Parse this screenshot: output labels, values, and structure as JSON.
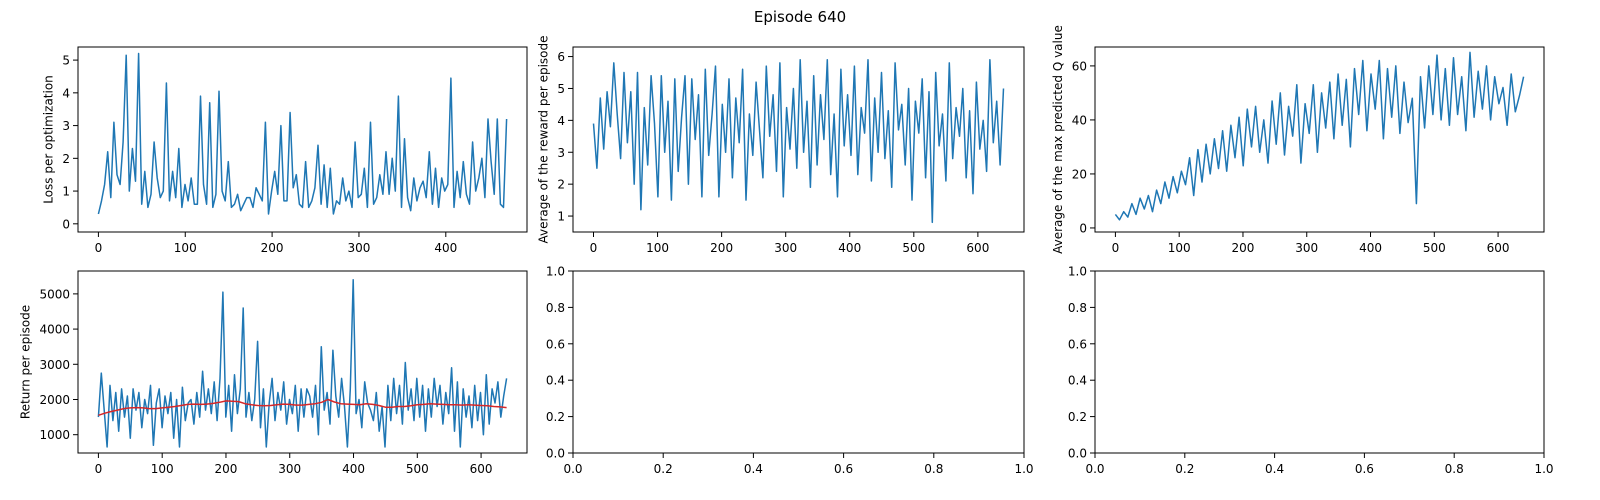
{
  "figure": {
    "title": "Episode 640"
  },
  "colors": {
    "series": "#1f77b4",
    "average": "#d62728",
    "axis": "#000000",
    "background": "#ffffff"
  },
  "chart_data": [
    {
      "id": "loss",
      "type": "line",
      "ylabel": "Loss per optimization",
      "xlim": [
        -23.5,
        493.5
      ],
      "ylim": [
        -0.25,
        5.4
      ],
      "xticks": [
        0,
        100,
        200,
        300,
        400
      ],
      "yticks": [
        0,
        1,
        2,
        3,
        4,
        5
      ],
      "xtick_labels": [
        "0",
        "100",
        "200",
        "300",
        "400"
      ],
      "ytick_labels": [
        "0",
        "1",
        "2",
        "3",
        "4",
        "5"
      ],
      "series": [
        {
          "x_start": 0,
          "x_end": 470,
          "values": [
            0.3,
            0.7,
            1.2,
            2.2,
            0.8,
            3.1,
            1.5,
            1.2,
            2.5,
            5.15,
            1.0,
            2.3,
            1.3,
            5.2,
            0.6,
            1.6,
            0.5,
            0.9,
            2.5,
            1.4,
            0.8,
            1.0,
            4.3,
            0.7,
            1.6,
            0.8,
            2.3,
            0.5,
            1.2,
            0.7,
            1.4,
            0.6,
            0.6,
            3.9,
            1.2,
            0.6,
            3.7,
            0.5,
            0.9,
            4.05,
            1.0,
            0.7,
            1.9,
            0.5,
            0.6,
            0.9,
            0.4,
            0.6,
            0.8,
            0.8,
            0.5,
            1.1,
            0.9,
            0.7,
            3.1,
            0.3,
            1.0,
            1.6,
            0.9,
            3.0,
            0.7,
            0.7,
            3.4,
            1.1,
            1.5,
            0.6,
            0.5,
            1.9,
            0.5,
            0.7,
            1.1,
            2.4,
            0.6,
            1.8,
            0.5,
            1.7,
            0.3,
            0.7,
            0.6,
            1.4,
            0.7,
            1.0,
            0.5,
            2.5,
            0.8,
            0.9,
            1.7,
            0.5,
            3.1,
            0.6,
            0.8,
            1.5,
            0.9,
            2.2,
            0.9,
            2.0,
            1.0,
            3.9,
            0.5,
            2.6,
            0.8,
            0.4,
            1.4,
            0.7,
            1.1,
            1.3,
            0.8,
            2.2,
            0.6,
            1.7,
            0.5,
            1.4,
            1.0,
            1.2,
            4.45,
            0.5,
            1.6,
            0.8,
            1.9,
            0.9,
            0.6,
            2.5,
            1.0,
            1.4,
            2.0,
            0.8,
            3.2,
            1.9,
            0.9,
            3.2,
            0.6,
            0.5,
            3.2
          ]
        }
      ]
    },
    {
      "id": "avg-reward",
      "type": "line",
      "ylabel": "Average of the reward per episode",
      "xlim": [
        -32,
        672
      ],
      "ylim": [
        0.5,
        6.3
      ],
      "xticks": [
        0,
        100,
        200,
        300,
        400,
        500,
        600
      ],
      "yticks": [
        1,
        2,
        3,
        4,
        5,
        6
      ],
      "xtick_labels": [
        "0",
        "100",
        "200",
        "300",
        "400",
        "500",
        "600"
      ],
      "ytick_labels": [
        "1",
        "2",
        "3",
        "4",
        "5",
        "6"
      ],
      "series": [
        {
          "x_start": 0,
          "x_end": 640,
          "values": [
            3.9,
            2.5,
            4.7,
            3.1,
            4.9,
            3.8,
            5.8,
            4.2,
            2.8,
            5.5,
            3.3,
            4.9,
            2.0,
            5.5,
            1.2,
            4.4,
            2.6,
            5.4,
            3.9,
            1.6,
            5.4,
            3.0,
            4.6,
            1.5,
            5.3,
            2.4,
            4.1,
            5.4,
            2.0,
            5.3,
            3.4,
            4.8,
            1.6,
            5.6,
            2.9,
            4.2,
            5.7,
            1.6,
            4.5,
            3.0,
            5.3,
            2.2,
            4.7,
            3.3,
            5.6,
            1.5,
            4.2,
            2.9,
            5.2,
            3.7,
            2.2,
            5.7,
            3.5,
            4.8,
            2.4,
            5.8,
            1.6,
            4.4,
            3.1,
            5.0,
            2.5,
            5.9,
            3.0,
            4.6,
            1.9,
            5.4,
            2.6,
            4.8,
            3.4,
            5.9,
            2.3,
            4.2,
            1.6,
            5.6,
            3.2,
            4.8,
            2.9,
            5.7,
            2.3,
            4.4,
            3.6,
            5.9,
            2.1,
            4.7,
            3.0,
            5.5,
            2.8,
            4.3,
            1.9,
            5.8,
            3.7,
            4.5,
            2.6,
            5.0,
            1.5,
            4.6,
            3.6,
            5.3,
            2.2,
            4.9,
            0.8,
            5.5,
            3.2,
            4.2,
            2.1,
            5.8,
            2.8,
            4.4,
            3.5,
            5.0,
            2.2,
            4.3,
            1.7,
            5.2,
            3.1,
            4.0,
            2.4,
            5.9,
            3.3,
            4.6,
            2.6,
            5.0
          ]
        }
      ]
    },
    {
      "id": "max-q",
      "type": "line",
      "ylabel": "Average of the max predicted Q value",
      "xlim": [
        -32,
        672
      ],
      "ylim": [
        -1.5,
        67
      ],
      "xticks": [
        0,
        100,
        200,
        300,
        400,
        500,
        600
      ],
      "yticks": [
        0,
        20,
        40,
        60
      ],
      "xtick_labels": [
        "0",
        "100",
        "200",
        "300",
        "400",
        "500",
        "600"
      ],
      "ytick_labels": [
        "0",
        "20",
        "40",
        "60"
      ],
      "series": [
        {
          "x_start": 0,
          "x_end": 640,
          "values": [
            5,
            3,
            6,
            4,
            9,
            5,
            11,
            7,
            12,
            6,
            14,
            9,
            17,
            11,
            19,
            13,
            21,
            16,
            26,
            12,
            29,
            17,
            31,
            20,
            33,
            22,
            36,
            21,
            38,
            26,
            41,
            23,
            44,
            30,
            45,
            28,
            40,
            24,
            47,
            31,
            50,
            27,
            45,
            34,
            53,
            24,
            46,
            35,
            53,
            28,
            50,
            37,
            54,
            33,
            57,
            38,
            55,
            30,
            59,
            42,
            62,
            36,
            57,
            44,
            62,
            33,
            59,
            41,
            60,
            35,
            54,
            39,
            48,
            9,
            56,
            37,
            60,
            42,
            64,
            40,
            59,
            38,
            63,
            42,
            56,
            36,
            65,
            41,
            58,
            44,
            60,
            40,
            56,
            46,
            52,
            38,
            57,
            43,
            49,
            56
          ]
        }
      ]
    },
    {
      "id": "return",
      "type": "line",
      "ylabel": "Return per episode",
      "xlim": [
        -32,
        672
      ],
      "ylim": [
        480,
        5650
      ],
      "xticks": [
        0,
        100,
        200,
        300,
        400,
        500,
        600
      ],
      "yticks": [
        1000,
        2000,
        3000,
        4000,
        5000
      ],
      "xtick_labels": [
        "0",
        "100",
        "200",
        "300",
        "400",
        "500",
        "600"
      ],
      "ytick_labels": [
        "1000",
        "2000",
        "3000",
        "4000",
        "5000"
      ],
      "series": [
        {
          "x_start": 0,
          "x_end": 640,
          "values": [
            1500,
            2750,
            1700,
            650,
            2400,
            1400,
            2200,
            1100,
            2300,
            1500,
            2100,
            900,
            2300,
            1700,
            2200,
            1200,
            2000,
            1600,
            2400,
            700,
            1900,
            2300,
            1200,
            2100,
            1600,
            2200,
            900,
            2000,
            650,
            2350,
            1400,
            1900,
            2000,
            1300,
            2200,
            1500,
            2800,
            1700,
            2300,
            1600,
            2500,
            1400,
            2600,
            5050,
            1500,
            2400,
            1100,
            2700,
            1600,
            2300,
            4600,
            1500,
            2200,
            1400,
            2000,
            3650,
            1200,
            2300,
            650,
            1900,
            2600,
            1400,
            2200,
            1700,
            2500,
            1300,
            2000,
            1600,
            2400,
            1100,
            2300,
            1500,
            2300,
            2100,
            1500,
            2400,
            1000,
            3500,
            1700,
            2200,
            1300,
            3400,
            2100,
            1500,
            2600,
            1800,
            650,
            2300,
            5400,
            1600,
            2000,
            1200,
            2500,
            1900,
            1700,
            1400,
            2200,
            1100,
            1800,
            650,
            2400,
            1400,
            2600,
            1600,
            2400,
            1300,
            3050,
            1700,
            2300,
            1400,
            2600,
            1500,
            2400,
            1100,
            2300,
            1500,
            2600,
            1800,
            2400,
            1300,
            2200,
            1600,
            2900,
            1100,
            2500,
            650,
            2300,
            1500,
            2100,
            1200,
            2400,
            1400,
            2200,
            1000,
            2700,
            1300,
            2300,
            1900,
            2500,
            1500,
            2100,
            2600
          ]
        },
        {
          "x_start": 0,
          "x_end": 640,
          "values": [
            1550,
            1610,
            1660,
            1700,
            1740,
            1760,
            1770,
            1760,
            1740,
            1740,
            1760,
            1780,
            1800,
            1830,
            1860,
            1870,
            1860,
            1870,
            1890,
            1920,
            1960,
            1950,
            1940,
            1880,
            1850,
            1830,
            1820,
            1830,
            1850,
            1870,
            1860,
            1840,
            1840,
            1860,
            1880,
            1920,
            2000,
            1930,
            1880,
            1870,
            1860,
            1850,
            1880,
            1860,
            1830,
            1780,
            1780,
            1800,
            1800,
            1820,
            1850,
            1860,
            1880,
            1870,
            1860,
            1850,
            1850,
            1840,
            1850,
            1840,
            1830,
            1820,
            1800,
            1790,
            1770
          ]
        }
      ]
    },
    {
      "id": "empty-1",
      "type": "line",
      "ylabel": "",
      "xlim": [
        0,
        1
      ],
      "ylim": [
        0,
        1
      ],
      "xticks": [
        0,
        0.2,
        0.4,
        0.6,
        0.8,
        1.0
      ],
      "yticks": [
        0,
        0.2,
        0.4,
        0.6,
        0.8,
        1.0
      ],
      "xtick_labels": [
        "0.0",
        "0.2",
        "0.4",
        "0.6",
        "0.8",
        "1.0"
      ],
      "ytick_labels": [
        "0.0",
        "0.2",
        "0.4",
        "0.6",
        "0.8",
        "1.0"
      ],
      "series": []
    },
    {
      "id": "empty-2",
      "type": "line",
      "ylabel": "",
      "xlim": [
        0,
        1
      ],
      "ylim": [
        0,
        1
      ],
      "xticks": [
        0,
        0.2,
        0.4,
        0.6,
        0.8,
        1.0
      ],
      "yticks": [
        0,
        0.2,
        0.4,
        0.6,
        0.8,
        1.0
      ],
      "xtick_labels": [
        "0.0",
        "0.2",
        "0.4",
        "0.6",
        "0.8",
        "1.0"
      ],
      "ytick_labels": [
        "0.0",
        "0.2",
        "0.4",
        "0.6",
        "0.8",
        "1.0"
      ],
      "series": []
    }
  ]
}
